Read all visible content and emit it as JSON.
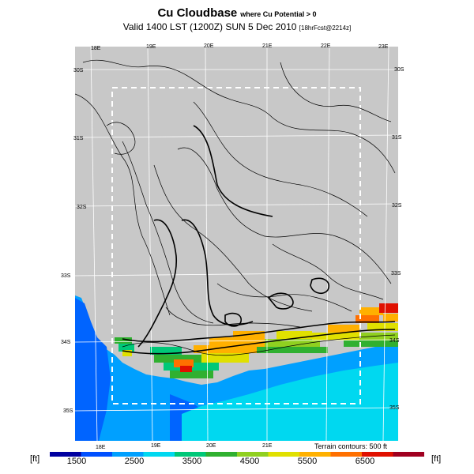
{
  "header": {
    "title": "Cu Cloudbase",
    "title_suffix": "where Cu Potential > 0",
    "valid_line": "Valid 1400 LST (1200Z) SUN 5 Dec 2010",
    "forecast_note": "[18hrFcst@2214z]"
  },
  "map": {
    "region": "Western Cape, South Africa",
    "lon_labels_top": [
      "18E",
      "19E",
      "20E",
      "21E",
      "22E",
      "23E"
    ],
    "lon_labels_bottom": [
      "18E",
      "19E",
      "20E",
      "21E"
    ],
    "lat_labels_left": [
      "30S",
      "31S",
      "32S",
      "33S",
      "34S",
      "35S"
    ],
    "lat_labels_right": [
      "30S",
      "31S",
      "32S",
      "33S",
      "34S",
      "35S"
    ],
    "terrain_note": "Terrain contours: 500 ft",
    "colors": {
      "land_no_cu": "#c8c8c8",
      "ocean": "#00a0ff",
      "ocean_deep": "#0064ff",
      "shallow": "#00d8f0",
      "grid_line": "#ffffff",
      "contour": "#000000",
      "inner_box": "#ffffff"
    }
  },
  "colorbar": {
    "unit_left": "[ft]",
    "unit_right": "[ft]",
    "labels": [
      "1500",
      "2500",
      "3500",
      "4500",
      "5500",
      "6500"
    ],
    "colors": [
      "#0000a0",
      "#0050ff",
      "#00a0ff",
      "#00d8f0",
      "#00c878",
      "#30b030",
      "#90d020",
      "#e0e000",
      "#ffb000",
      "#ff7000",
      "#e01000",
      "#a00020"
    ]
  }
}
